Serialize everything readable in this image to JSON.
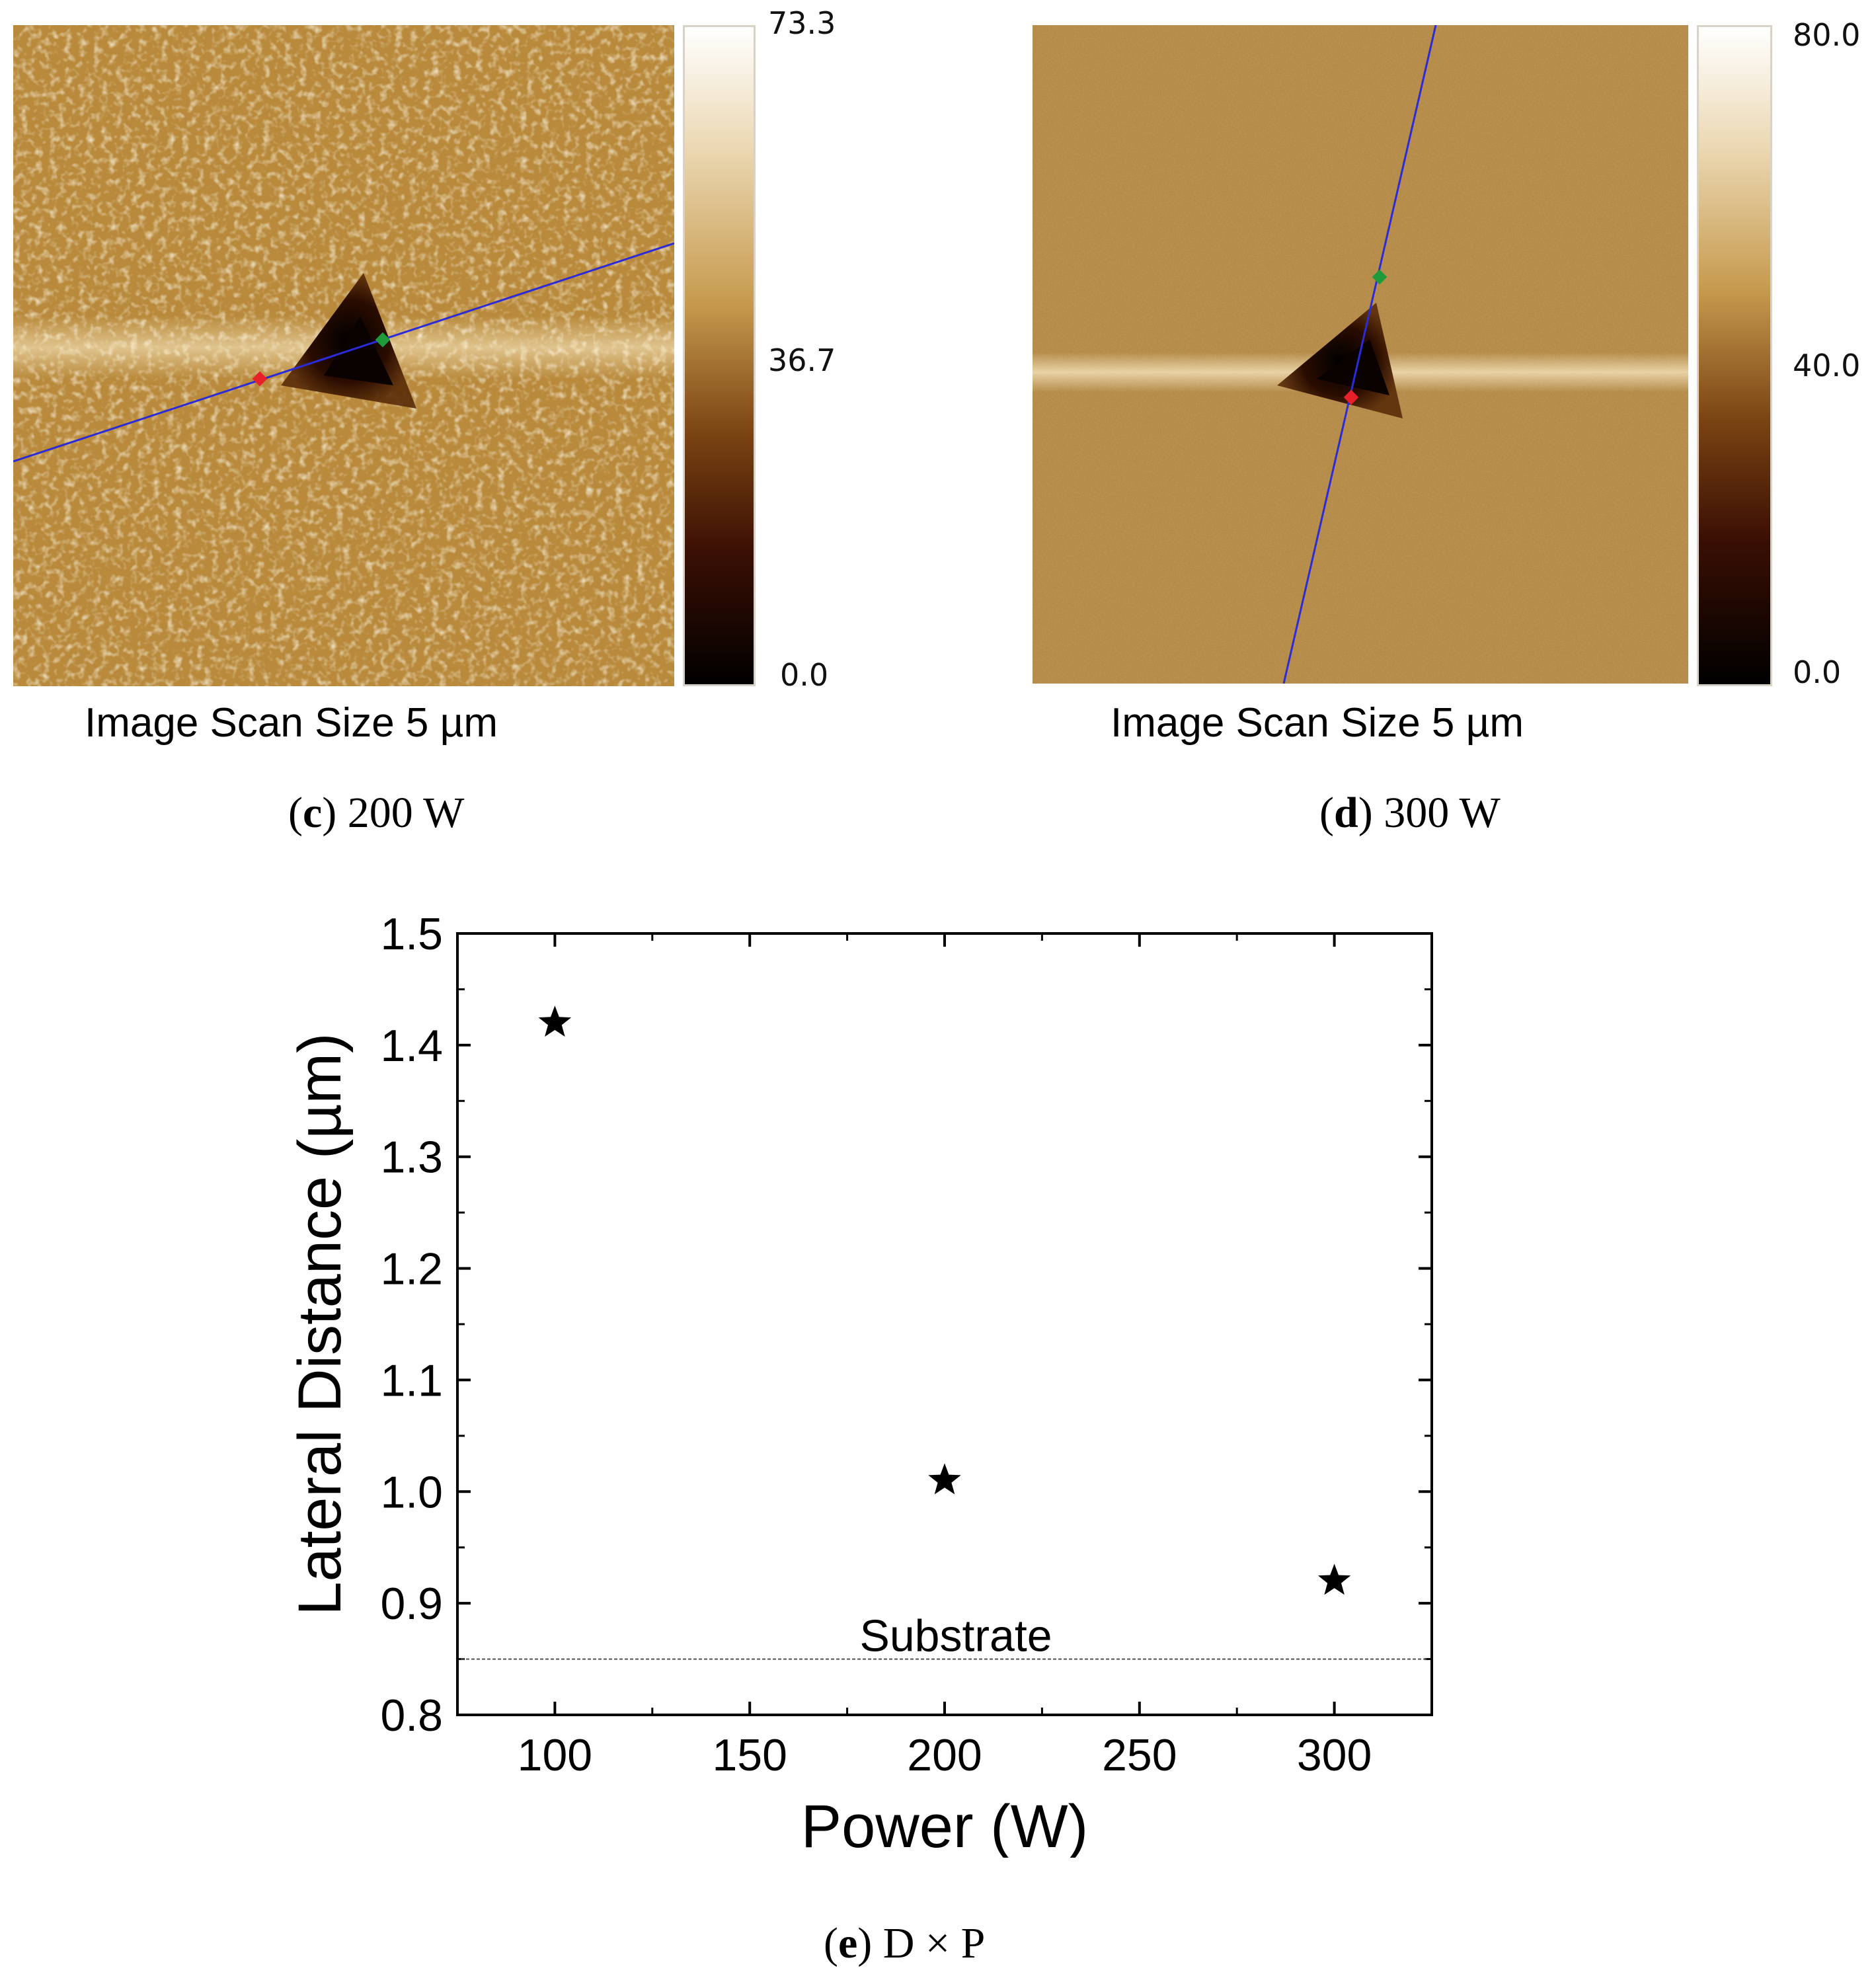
{
  "panel_c": {
    "colorbar_max": "73.3",
    "colorbar_mid": "36.7",
    "colorbar_min": "0.0",
    "scan_label": "Image Scan Size  5 µm",
    "caption_letter": "c",
    "caption_text": "200 W"
  },
  "panel_d": {
    "colorbar_max": "80.0",
    "colorbar_mid": "40.0",
    "colorbar_min": "0.0",
    "scan_label": "Image Scan Size  5 µm",
    "caption_letter": "d",
    "caption_text": "300 W"
  },
  "panel_e": {
    "caption_letter": "e",
    "caption_text": "D × P"
  },
  "colors": {
    "afm_base_c": "#b98a3c",
    "afm_base_d": "#b48a48",
    "line": "#2b2bd8",
    "marker_red": "#e8202a",
    "marker_green": "#1f9a3a"
  },
  "chart_data": {
    "type": "scatter",
    "xlabel": "Power (W)",
    "ylabel": "Lateral Distance (µm)",
    "xlim": [
      75,
      325
    ],
    "ylim": [
      0.8,
      1.5
    ],
    "xticks": [
      "100",
      "150",
      "200",
      "250",
      "300"
    ],
    "yticks": [
      "0.8",
      "0.9",
      "1.0",
      "1.1",
      "1.2",
      "1.3",
      "1.4",
      "1.5"
    ],
    "series": [
      {
        "x": [
          100,
          200,
          300
        ],
        "y": [
          1.42,
          1.01,
          0.92
        ],
        "marker": "star"
      }
    ],
    "reference_line": {
      "label": "Substrate",
      "y": 0.85,
      "style": "dotted"
    },
    "grid": false
  }
}
